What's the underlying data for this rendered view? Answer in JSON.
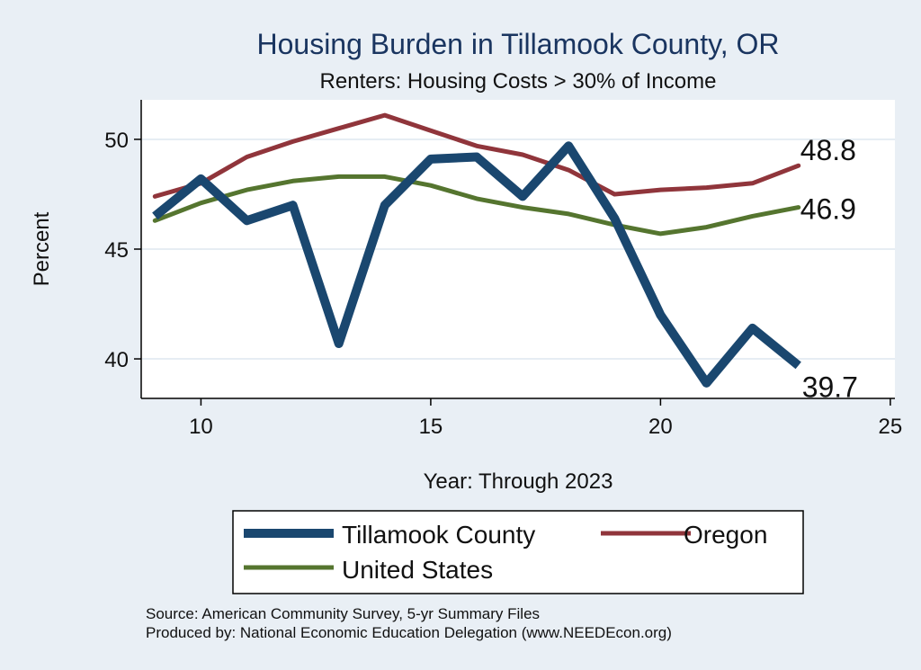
{
  "chart_data": {
    "type": "line",
    "title": "Housing Burden in Tillamook County, OR",
    "subtitle": "Renters: Housing Costs > 30% of Income",
    "xlabel": "Year: Through 2023",
    "ylabel": "Percent",
    "xlim": [
      8.7,
      25.1
    ],
    "ylim": [
      38.2,
      51.8
    ],
    "xticks": [
      "10",
      "15",
      "20",
      "25"
    ],
    "yticks": [
      "40",
      "45",
      "50"
    ],
    "x": [
      9,
      10,
      11,
      12,
      13,
      14,
      15,
      16,
      17,
      18,
      19,
      20,
      21,
      22,
      23
    ],
    "series": [
      {
        "name": "Tillamook County",
        "color": "#1a476f",
        "values": [
          46.5,
          48.2,
          46.3,
          47.0,
          40.7,
          47.0,
          49.1,
          49.2,
          47.4,
          49.7,
          46.4,
          42.0,
          38.9,
          41.4,
          39.7
        ]
      },
      {
        "name": "Oregon",
        "color": "#90353b",
        "values": [
          47.4,
          48.0,
          49.2,
          49.9,
          50.5,
          51.1,
          50.4,
          49.7,
          49.3,
          48.6,
          47.5,
          47.7,
          47.8,
          48.0,
          48.8
        ]
      },
      {
        "name": "United States",
        "color": "#55752f",
        "values": [
          46.3,
          47.1,
          47.7,
          48.1,
          48.3,
          48.3,
          47.9,
          47.3,
          46.9,
          46.6,
          46.1,
          45.7,
          46.0,
          46.5,
          46.9
        ]
      }
    ],
    "end_labels": [
      "39.7",
      "48.8",
      "46.9"
    ],
    "legend": {
      "position": "bottom",
      "items": [
        "Tillamook County",
        "Oregon",
        "United States"
      ]
    },
    "grid": true
  },
  "source": {
    "line1": "Source: American Community Survey, 5-yr Summary Files",
    "line2": "Produced by: National Economic Education Delegation (www.NEEDEcon.org)"
  }
}
